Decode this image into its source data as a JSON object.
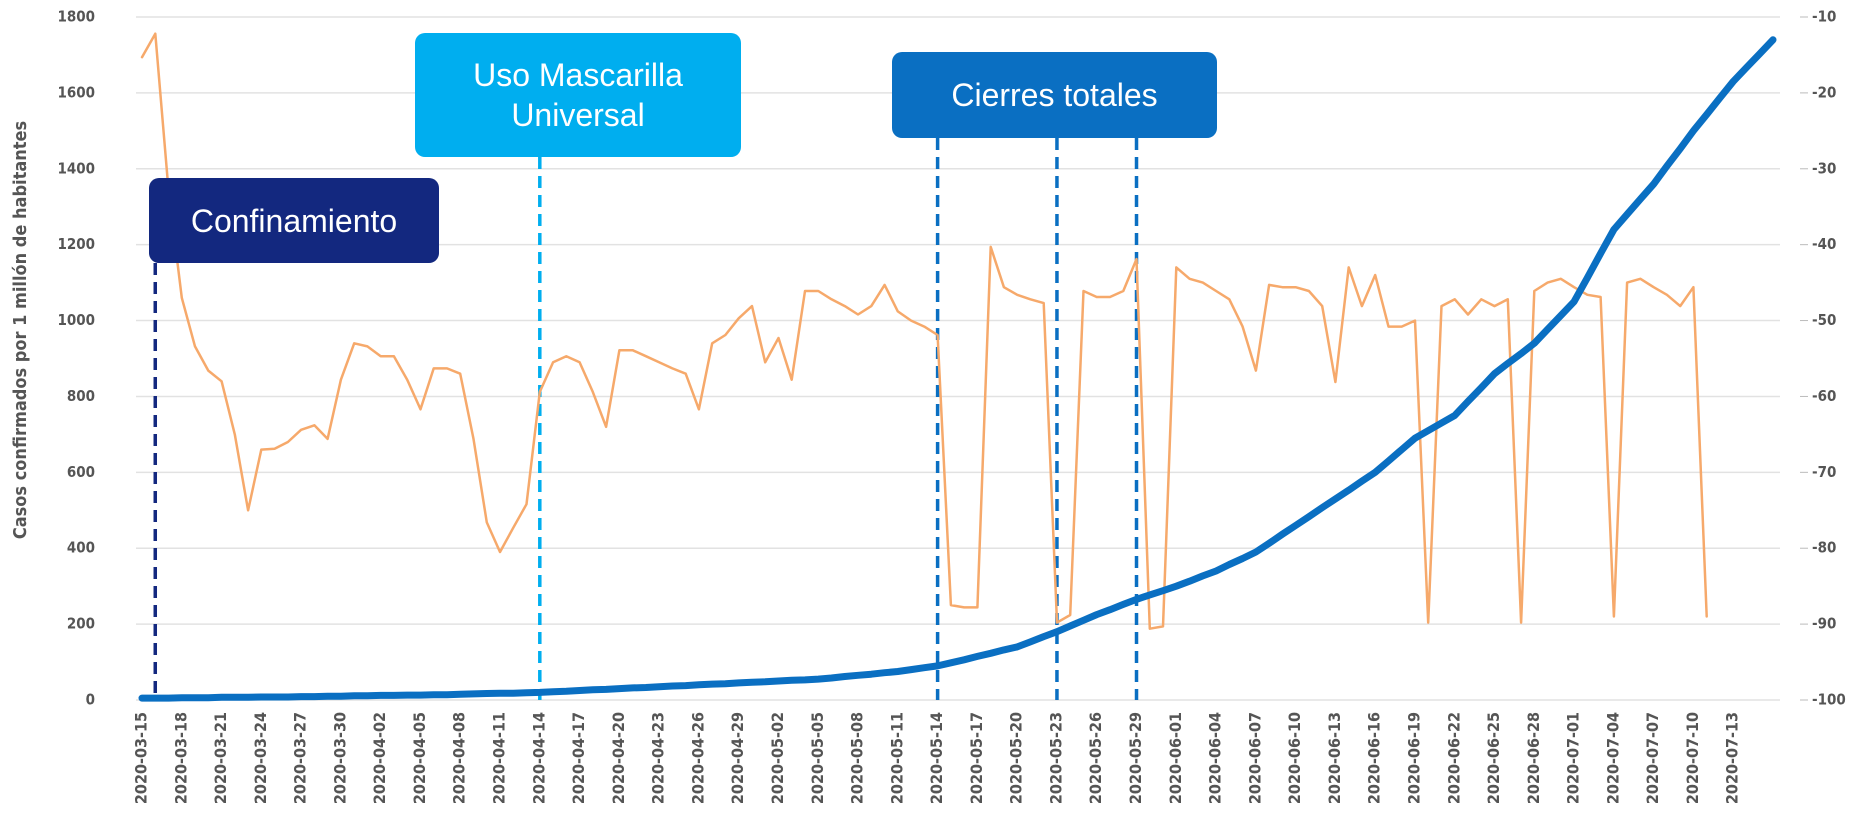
{
  "chart_data": {
    "type": "line",
    "y_label": "Casos confirmados por 1 millón de habitantes",
    "x": [
      "2020-03-15",
      "2020-03-16",
      "2020-03-17",
      "2020-03-18",
      "2020-03-19",
      "2020-03-20",
      "2020-03-21",
      "2020-03-22",
      "2020-03-23",
      "2020-03-24",
      "2020-03-25",
      "2020-03-26",
      "2020-03-27",
      "2020-03-28",
      "2020-03-29",
      "2020-03-30",
      "2020-03-31",
      "2020-04-01",
      "2020-04-02",
      "2020-04-03",
      "2020-04-04",
      "2020-04-05",
      "2020-04-06",
      "2020-04-07",
      "2020-04-08",
      "2020-04-09",
      "2020-04-10",
      "2020-04-11",
      "2020-04-12",
      "2020-04-13",
      "2020-04-14",
      "2020-04-15",
      "2020-04-16",
      "2020-04-17",
      "2020-04-18",
      "2020-04-19",
      "2020-04-20",
      "2020-04-21",
      "2020-04-22",
      "2020-04-23",
      "2020-04-24",
      "2020-04-25",
      "2020-04-26",
      "2020-04-27",
      "2020-04-28",
      "2020-04-29",
      "2020-04-30",
      "2020-05-01",
      "2020-05-02",
      "2020-05-03",
      "2020-05-04",
      "2020-05-05",
      "2020-05-06",
      "2020-05-07",
      "2020-05-08",
      "2020-05-09",
      "2020-05-10",
      "2020-05-11",
      "2020-05-12",
      "2020-05-13",
      "2020-05-14",
      "2020-05-15",
      "2020-05-16",
      "2020-05-17",
      "2020-05-18",
      "2020-05-19",
      "2020-05-20",
      "2020-05-21",
      "2020-05-22",
      "2020-05-23",
      "2020-05-24",
      "2020-05-25",
      "2020-05-26",
      "2020-05-27",
      "2020-05-28",
      "2020-05-29",
      "2020-05-30",
      "2020-05-31",
      "2020-06-01",
      "2020-06-02",
      "2020-06-03",
      "2020-06-04",
      "2020-06-05",
      "2020-06-06",
      "2020-06-07",
      "2020-06-08",
      "2020-06-09",
      "2020-06-10",
      "2020-06-11",
      "2020-06-12",
      "2020-06-13",
      "2020-06-14",
      "2020-06-15",
      "2020-06-16",
      "2020-06-17",
      "2020-06-18",
      "2020-06-19",
      "2020-06-20",
      "2020-06-21",
      "2020-06-22",
      "2020-06-23",
      "2020-06-24",
      "2020-06-25",
      "2020-06-26",
      "2020-06-27",
      "2020-06-28",
      "2020-06-29",
      "2020-06-30",
      "2020-07-01",
      "2020-07-02",
      "2020-07-03",
      "2020-07-04",
      "2020-07-05",
      "2020-07-06",
      "2020-07-07",
      "2020-07-08",
      "2020-07-09",
      "2020-07-10",
      "2020-07-11",
      "2020-07-12",
      "2020-07-13",
      "2020-07-14",
      "2020-07-15",
      "2020-07-16"
    ],
    "xticks": [
      "2020-03-15",
      "2020-03-18",
      "2020-03-21",
      "2020-03-24",
      "2020-03-27",
      "2020-03-30",
      "2020-04-02",
      "2020-04-05",
      "2020-04-08",
      "2020-04-11",
      "2020-04-14",
      "2020-04-17",
      "2020-04-20",
      "2020-04-23",
      "2020-04-26",
      "2020-04-29",
      "2020-05-02",
      "2020-05-05",
      "2020-05-08",
      "2020-05-11",
      "2020-05-14",
      "2020-05-17",
      "2020-05-20",
      "2020-05-23",
      "2020-05-26",
      "2020-05-29",
      "2020-06-01",
      "2020-06-04",
      "2020-06-07",
      "2020-06-10",
      "2020-06-13",
      "2020-06-16",
      "2020-06-19",
      "2020-06-22",
      "2020-06-25",
      "2020-06-28",
      "2020-07-01",
      "2020-07-04",
      "2020-07-07",
      "2020-07-10",
      "2020-07-13"
    ],
    "series": [
      {
        "color": "#0a6fc2",
        "axis": "y",
        "values": [
          5,
          5,
          5,
          6,
          6,
          6,
          7,
          7,
          7,
          8,
          8,
          8,
          9,
          9,
          10,
          10,
          11,
          11,
          12,
          12,
          13,
          13,
          14,
          14,
          15,
          16,
          17,
          18,
          18,
          19,
          20,
          22,
          23,
          25,
          27,
          28,
          30,
          32,
          33,
          35,
          37,
          38,
          40,
          42,
          43,
          45,
          47,
          48,
          50,
          52,
          53,
          55,
          58,
          62,
          65,
          68,
          72,
          75,
          80,
          85,
          90,
          98,
          106,
          115,
          123,
          132,
          140,
          153,
          167,
          180,
          195,
          210,
          225,
          238,
          252,
          265,
          277,
          288,
          300,
          313,
          327,
          340,
          357,
          373,
          390,
          413,
          437,
          460,
          483,
          507,
          530,
          553,
          577,
          600,
          630,
          660,
          690,
          710,
          730,
          750,
          787,
          823,
          860,
          887,
          913,
          940,
          977,
          1013,
          1050,
          1113,
          1177,
          1240,
          1280,
          1320,
          1360,
          1407,
          1453,
          1500,
          1543,
          1587,
          1630,
          1667,
          1703,
          1740
        ]
      },
      {
        "color": "#f6a96b",
        "axis": "y2",
        "values": [
          -15.3,
          -12.2,
          -32.8,
          -47,
          -53.4,
          -56.6,
          -58,
          -65,
          -75,
          -67,
          -66.9,
          -66,
          -64.4,
          -63.8,
          -65.6,
          -57.8,
          -53,
          -53.4,
          -54.7,
          -54.7,
          -57.8,
          -61.7,
          -56.3,
          -56.3,
          -57,
          -65.6,
          -76.6,
          -80.5,
          -77.3,
          -74.2,
          -59.4,
          -55.5,
          -54.7,
          -55.5,
          -59.4,
          -64,
          -53.9,
          -53.9,
          -54.7,
          -55.5,
          -56.3,
          -57,
          -61.7,
          -53,
          -51.9,
          -49.7,
          -48.1,
          -55.5,
          -52.3,
          -57.8,
          -46.1,
          -46.1,
          -47.2,
          -48.1,
          -49.2,
          -48.1,
          -45.3,
          -48.8,
          -50,
          -50.8,
          -51.9,
          -87.5,
          -87.8,
          -87.8,
          -40.3,
          -45.6,
          -46.6,
          -47.2,
          -47.7,
          -89.8,
          -88.8,
          -46.1,
          -46.9,
          -46.9,
          -46.1,
          -41.9,
          -90.6,
          -90.3,
          -43,
          -44.5,
          -45,
          -46.1,
          -47.2,
          -50.8,
          -56.6,
          -45.3,
          -45.6,
          -45.6,
          -46.1,
          -48.1,
          -58.1,
          -43,
          -48.1,
          -44,
          -50.8,
          -50.8,
          -50,
          -89.8,
          -48.1,
          -47.2,
          -49.2,
          -47.2,
          -48.1,
          -47.2,
          -89.8,
          -46.1,
          -45,
          -44.5,
          -45.6,
          -46.6,
          -46.9,
          -89,
          -45,
          -44.5,
          -45.6,
          -46.6,
          -48.1,
          -45.6,
          -89,
          null,
          null,
          null,
          null,
          null
        ]
      }
    ],
    "ylim": [
      0,
      1800
    ],
    "yticks": [
      0,
      200,
      400,
      600,
      800,
      1000,
      1200,
      1400,
      1600,
      1800
    ],
    "y2lim": [
      -100,
      -10
    ],
    "y2ticks": [
      -100,
      -90,
      -80,
      -70,
      -60,
      -50,
      -40,
      -30,
      -20,
      -10
    ],
    "grid": true,
    "annotations": [
      {
        "text": "Confinamiento",
        "color": "#13287f",
        "x": [
          "2020-03-16"
        ]
      },
      {
        "text": "Uso Mascarilla Universal",
        "color": "#00aeef",
        "x": [
          "2020-04-14"
        ]
      },
      {
        "text": "Cierres totales",
        "color": "#0a6fc2",
        "x": [
          "2020-05-14",
          "2020-05-23",
          "2020-05-29"
        ]
      }
    ]
  }
}
